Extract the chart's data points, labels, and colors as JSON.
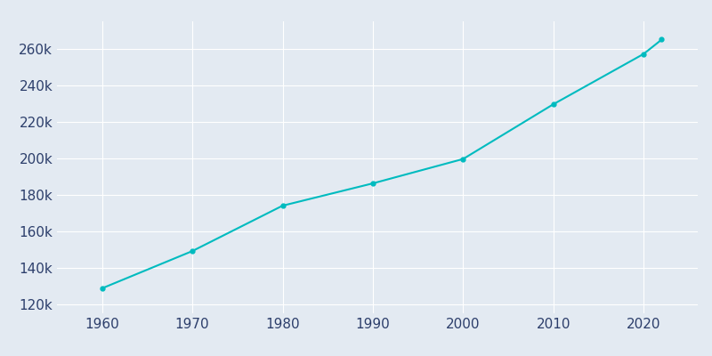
{
  "years": [
    1960,
    1970,
    1980,
    1990,
    2000,
    2010,
    2020,
    2022
  ],
  "population": [
    128691,
    149101,
    173979,
    186206,
    199564,
    229573,
    257141,
    265004
  ],
  "line_color": "#00BBBF",
  "marker": "o",
  "marker_size": 3.5,
  "line_width": 1.5,
  "background_color": "#E3EAF2",
  "grid_color": "#ffffff",
  "tick_color": "#2c3e6b",
  "xlim": [
    1955,
    2026
  ],
  "ylim": [
    115000,
    275000
  ],
  "xticks": [
    1960,
    1970,
    1980,
    1990,
    2000,
    2010,
    2020
  ],
  "ytick_step": 20000,
  "ytick_min": 120000,
  "ytick_max": 260000,
  "tick_fontsize": 11
}
